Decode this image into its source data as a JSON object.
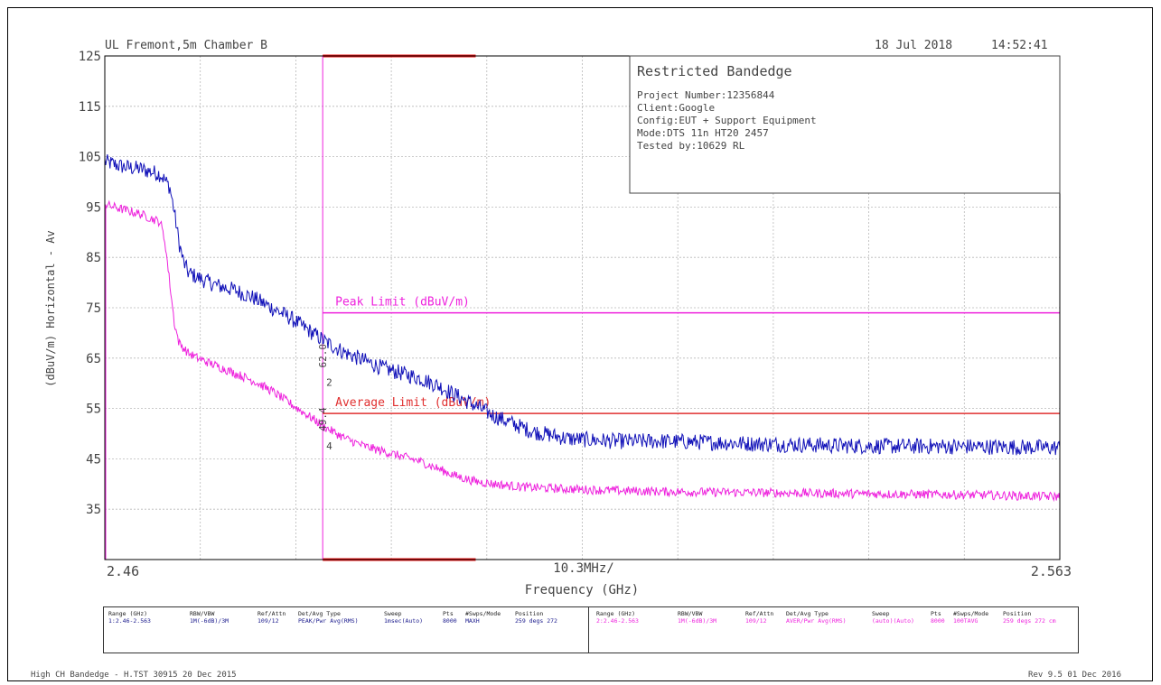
{
  "header": {
    "site": "UL Fremont,5m Chamber B",
    "date": "18 Jul 2018",
    "time": "14:52:41"
  },
  "info_box": {
    "title": "Restricted Bandedge",
    "lines": [
      "Project Number:12356844",
      "Client:Google",
      "Config:EUT + Support Equipment",
      "Mode:DTS 11n HT20 2457",
      "Tested by:10629 RL"
    ]
  },
  "chart_data": {
    "type": "line",
    "ylabel": "(dBuV/m) Horizontal - Av",
    "xlabel": "Frequency (GHz)",
    "x_start_label": "2.46",
    "x_center_label": "10.3MHz/",
    "x_end_label": "2.563",
    "xlim": [
      2.46,
      2.563
    ],
    "ylim": [
      25,
      125
    ],
    "y_ticks": [
      125,
      115,
      105,
      95,
      85,
      75,
      65,
      55,
      45,
      35
    ],
    "grid": true,
    "series": [
      {
        "name": "",
        "color": "#1010b8",
        "x": [
          2.46,
          2.462,
          2.464,
          2.466,
          2.467,
          2.4675,
          2.468,
          2.4685,
          2.469,
          2.47,
          2.472,
          2.474,
          2.476,
          2.478,
          2.48,
          2.482,
          2.484,
          2.486,
          2.488,
          2.49,
          2.492,
          2.494,
          2.496,
          2.498,
          2.5,
          2.502,
          2.504,
          2.506,
          2.51,
          2.515,
          2.52,
          2.525,
          2.53,
          2.535,
          2.54,
          2.545,
          2.55,
          2.555,
          2.56,
          2.563
        ],
        "y": [
          104,
          103,
          102.5,
          101.5,
          99,
          94,
          88,
          84,
          82,
          81,
          79.5,
          78.5,
          77,
          75,
          73,
          70.5,
          68,
          66,
          64.5,
          63,
          62,
          61,
          59.5,
          57.5,
          55.5,
          53.5,
          52,
          50.5,
          49,
          48.5,
          48.5,
          48.3,
          48,
          47.8,
          47.6,
          47.5,
          47.5,
          47.4,
          47.3,
          47.2
        ]
      },
      {
        "name": "",
        "color": "#ee22dd",
        "x": [
          2.46,
          2.462,
          2.464,
          2.466,
          2.4665,
          2.467,
          2.4675,
          2.468,
          2.469,
          2.47,
          2.472,
          2.474,
          2.476,
          2.478,
          2.48,
          2.482,
          2.484,
          2.486,
          2.488,
          2.49,
          2.492,
          2.494,
          2.496,
          2.498,
          2.5,
          2.502,
          2.504,
          2.506,
          2.51,
          2.515,
          2.52,
          2.525,
          2.53,
          2.535,
          2.54,
          2.545,
          2.55,
          2.555,
          2.56,
          2.563
        ],
        "y": [
          95.5,
          94.5,
          93.5,
          92,
          88,
          80,
          72,
          68,
          66,
          65,
          63.5,
          62,
          60.5,
          58.5,
          56,
          53.5,
          51,
          49,
          47.5,
          46.5,
          45.5,
          44.5,
          43,
          41.5,
          40.5,
          40,
          39.6,
          39.3,
          39,
          38.7,
          38.5,
          38.4,
          38.3,
          38.2,
          38.1,
          38,
          37.9,
          37.8,
          37.6,
          37.5
        ]
      }
    ],
    "limits": [
      {
        "name": "Peak Limit (dBuV/m)",
        "value": 74,
        "x_from": 2.4835,
        "x_to": 2.563,
        "color": "#ee22dd"
      },
      {
        "name": "Average Limit (dBuV/m)",
        "value": 54,
        "x_from": 2.4835,
        "x_to": 2.563,
        "color": "#e03030"
      }
    ],
    "restricted_band": {
      "x_from": 2.4835,
      "x_to": 2.5,
      "color": "#ee1111"
    },
    "markers": [
      {
        "label": "2",
        "value_label": "62.0",
        "x": 2.4835,
        "y": 62
      },
      {
        "label": "4",
        "value_label": "49.4",
        "x": 2.4835,
        "y": 49.4
      }
    ]
  },
  "table": {
    "left": {
      "color": "#1a1a8c",
      "headers": [
        "Range (GHz)",
        "RBW/VBW",
        "Ref/Attn",
        "Det/Avg Type",
        "Sweep",
        "Pts",
        "#Swps/Mode",
        "Position"
      ],
      "values": [
        "1:2.46-2.563",
        "1M(-6dB)/3M",
        "109/12",
        "PEAK/Pwr Avg(RMS)",
        "1msec(Auto)",
        "8000",
        "MAXH",
        "259 degs 272"
      ]
    },
    "right": {
      "color": "#ee22dd",
      "headers": [
        "Range (GHz)",
        "RBW/VBW",
        "Ref/Attn",
        "Det/Avg Type",
        "Sweep",
        "Pts",
        "#Swps/Mode",
        "Position"
      ],
      "values": [
        "2:2.46-2.563",
        "1M(-6dB)/3M",
        "109/12",
        "AVER/Pwr Avg(RMS)",
        "(auto)(Auto)",
        "8000",
        "100TAVG",
        "259 degs 272 cm"
      ]
    }
  },
  "footer": {
    "left": "High CH Bandedge - H.TST 30915 20 Dec 2015",
    "right": "Rev 9.5 01 Dec 2016"
  }
}
